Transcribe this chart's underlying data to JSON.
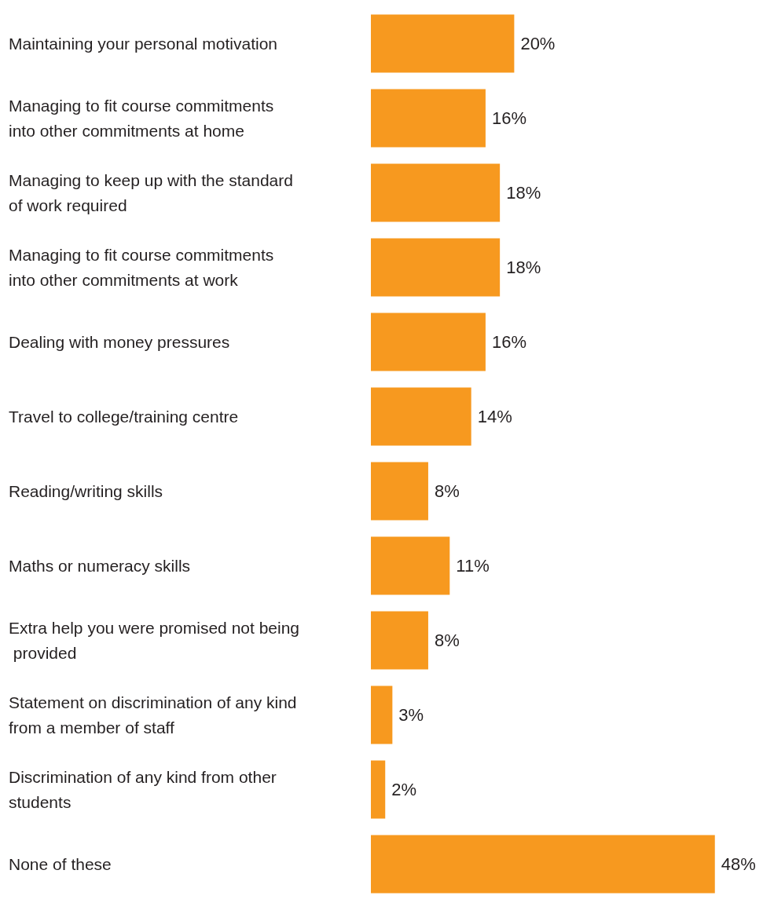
{
  "chart_data": {
    "type": "bar",
    "orientation": "horizontal",
    "categories": [
      "Maintaining your personal motivation",
      "Managing to fit course commitments into other commitments at home",
      "Managing to keep up with the standard of work required",
      "Managing to fit course commitments into other commitments at work",
      "Dealing with money pressures",
      "Travel to college/training centre",
      "Reading/writing skills",
      "Maths or numeracy skills",
      "Extra help you were promised not being provided",
      "Statement on discrimination of any kind from a member of staff",
      "Discrimination of any kind from other students",
      "None of these"
    ],
    "values": [
      20,
      16,
      18,
      18,
      16,
      14,
      8,
      11,
      8,
      3,
      2,
      48
    ],
    "value_labels": [
      "20%",
      "16%",
      "18%",
      "18%",
      "16%",
      "14%",
      "8%",
      "11%",
      "8%",
      "3%",
      "2%",
      "48%"
    ],
    "color": "#f7991f"
  }
}
